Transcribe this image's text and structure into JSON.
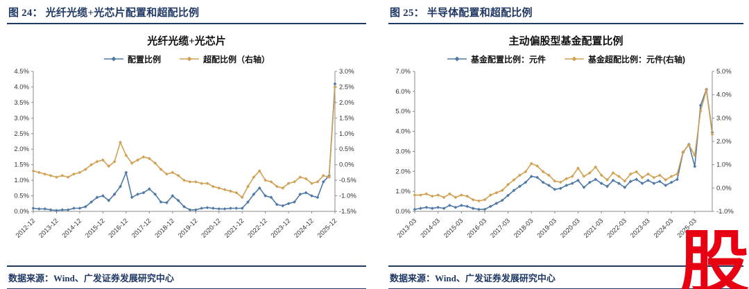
{
  "accent_color": "#1F3864",
  "watermark": "股",
  "figures": [
    {
      "header": "图 24： 光纤光缆+光芯片配置和超配比例",
      "source": "数据来源：Wind、广发证券发展研究中心"
    },
    {
      "header": "图 25： 半导体配置和超配比例",
      "source": "数据来源：Wind、广发证券发展研究中心"
    }
  ],
  "chart_data": [
    {
      "type": "line",
      "title": "光纤光缆+光芯片",
      "legend_position": "top",
      "grid": false,
      "categories": [
        "2012-12",
        "2013-03",
        "2013-06",
        "2013-09",
        "2013-12",
        "2014-03",
        "2014-06",
        "2014-09",
        "2014-12",
        "2015-03",
        "2015-06",
        "2015-09",
        "2015-12",
        "2016-03",
        "2016-06",
        "2016-09",
        "2016-12",
        "2017-03",
        "2017-06",
        "2017-09",
        "2017-12",
        "2018-03",
        "2018-06",
        "2018-09",
        "2018-12",
        "2019-03",
        "2019-06",
        "2019-09",
        "2019-12",
        "2020-03",
        "2020-06",
        "2020-09",
        "2020-12",
        "2021-03",
        "2021-06",
        "2021-09",
        "2021-12",
        "2022-03",
        "2022-06",
        "2022-09",
        "2022-12",
        "2023-03",
        "2023-06",
        "2023-09",
        "2023-12",
        "2024-03",
        "2024-06",
        "2024-09",
        "2024-12",
        "2025-03",
        "2025-06",
        "2025-09",
        "2025-12"
      ],
      "x_tick_labels": [
        "2012-12",
        "2013-12",
        "2014-12",
        "2015-12",
        "2016-12",
        "2017-12",
        "2018-12",
        "2019-12",
        "2020-12",
        "2021-12",
        "2022-12",
        "2023-12",
        "2024-12",
        "2025-12"
      ],
      "axes": {
        "left": {
          "min": 0.0,
          "max": 4.5,
          "ticks": [
            "0.0%",
            "0.5%",
            "1.0%",
            "1.5%",
            "2.0%",
            "2.5%",
            "3.0%",
            "3.5%",
            "4.0%",
            "4.5%"
          ]
        },
        "right": {
          "min": -1.5,
          "max": 3.0,
          "ticks": [
            "-1.5%",
            "-1.0%",
            "-0.5%",
            "0.0%",
            "0.5%",
            "1.0%",
            "1.5%",
            "2.0%",
            "2.5%",
            "3.0%"
          ]
        }
      },
      "series": [
        {
          "name": "配置比例",
          "axis": "left",
          "color": "#4E79A7",
          "marker": "diamond",
          "values": [
            0.1,
            0.08,
            0.08,
            0.05,
            0.03,
            0.05,
            0.05,
            0.1,
            0.1,
            0.15,
            0.3,
            0.45,
            0.5,
            0.35,
            0.55,
            0.8,
            1.25,
            0.45,
            0.55,
            0.6,
            0.72,
            0.55,
            0.3,
            0.28,
            0.5,
            0.35,
            0.15,
            0.05,
            0.05,
            0.1,
            0.12,
            0.1,
            0.08,
            0.08,
            0.1,
            0.1,
            0.1,
            0.3,
            0.55,
            0.75,
            0.5,
            0.45,
            0.22,
            0.18,
            0.25,
            0.3,
            0.55,
            0.6,
            0.5,
            0.45,
            0.95,
            1.15,
            4.1
          ]
        },
        {
          "name": "超配比例（右轴）",
          "axis": "right",
          "color": "#D1A052",
          "marker": "diamond",
          "values": [
            -0.2,
            -0.25,
            -0.3,
            -0.35,
            -0.4,
            -0.35,
            -0.4,
            -0.3,
            -0.25,
            -0.15,
            0.0,
            0.1,
            0.15,
            -0.05,
            0.1,
            0.72,
            0.3,
            0.05,
            0.15,
            0.25,
            0.2,
            0.05,
            -0.15,
            -0.3,
            -0.25,
            -0.35,
            -0.5,
            -0.55,
            -0.55,
            -0.6,
            -0.6,
            -0.7,
            -0.75,
            -0.8,
            -0.85,
            -0.9,
            -1.05,
            -0.7,
            -0.4,
            -0.2,
            -0.5,
            -0.55,
            -0.7,
            -0.75,
            -0.6,
            -0.55,
            -0.4,
            -0.45,
            -0.6,
            -0.55,
            -0.35,
            -0.4,
            2.5
          ]
        }
      ]
    },
    {
      "type": "line",
      "title": "主动偏股型基金配置比例",
      "legend_position": "top",
      "grid": false,
      "categories": [
        "2013-03",
        "2013-06",
        "2013-09",
        "2013-12",
        "2014-03",
        "2014-06",
        "2014-09",
        "2014-12",
        "2015-03",
        "2015-06",
        "2015-09",
        "2015-12",
        "2016-03",
        "2016-06",
        "2016-09",
        "2016-12",
        "2017-03",
        "2017-06",
        "2017-09",
        "2017-12",
        "2018-03",
        "2018-06",
        "2018-09",
        "2018-12",
        "2019-03",
        "2019-06",
        "2019-09",
        "2019-12",
        "2020-03",
        "2020-06",
        "2020-09",
        "2020-12",
        "2021-03",
        "2021-06",
        "2021-09",
        "2021-12",
        "2022-03",
        "2022-06",
        "2022-09",
        "2022-12",
        "2023-03",
        "2023-06",
        "2023-09",
        "2023-12",
        "2024-03",
        "2024-06",
        "2024-09",
        "2024-12",
        "2025-03",
        "2025-06",
        "2025-09",
        "2025-12"
      ],
      "x_tick_labels": [
        "2013-03",
        "2014-03",
        "2015-03",
        "2016-03",
        "2017-03",
        "2018-03",
        "2019-03",
        "2020-03",
        "2021-03",
        "2022-03",
        "2023-03",
        "2024-03",
        "2025-03"
      ],
      "axes": {
        "left": {
          "min": 0.0,
          "max": 7.0,
          "ticks": [
            "0.0%",
            "1.0%",
            "2.0%",
            "3.0%",
            "4.0%",
            "5.0%",
            "6.0%",
            "7.0%"
          ]
        },
        "right": {
          "min": -1.0,
          "max": 5.0,
          "ticks": [
            "-1.0%",
            "0.0%",
            "1.0%",
            "2.0%",
            "3.0%",
            "4.0%",
            "5.0%"
          ]
        }
      },
      "series": [
        {
          "name": "基金配置比例：元件",
          "axis": "left",
          "color": "#4E79A7",
          "marker": "diamond",
          "values": [
            0.1,
            0.15,
            0.2,
            0.15,
            0.2,
            0.15,
            0.3,
            0.2,
            0.3,
            0.25,
            0.15,
            0.1,
            0.1,
            0.25,
            0.4,
            0.55,
            0.8,
            1.05,
            1.25,
            1.45,
            1.75,
            1.7,
            1.45,
            1.3,
            1.1,
            1.15,
            1.3,
            1.4,
            1.55,
            1.2,
            1.45,
            1.6,
            1.4,
            1.25,
            1.55,
            1.4,
            1.2,
            1.5,
            1.6,
            1.4,
            1.55,
            1.4,
            1.5,
            1.3,
            1.45,
            1.6,
            2.95,
            3.35,
            2.25,
            5.3,
            6.1,
            3.95
          ]
        },
        {
          "name": "基金超配比例：元件(右轴)",
          "axis": "right",
          "color": "#D1A052",
          "marker": "diamond",
          "values": [
            -0.3,
            -0.3,
            -0.25,
            -0.35,
            -0.3,
            -0.4,
            -0.25,
            -0.4,
            -0.3,
            -0.35,
            -0.5,
            -0.55,
            -0.5,
            -0.3,
            -0.2,
            -0.1,
            0.15,
            0.35,
            0.55,
            0.7,
            1.05,
            0.95,
            0.7,
            0.55,
            0.3,
            0.25,
            0.4,
            0.5,
            0.85,
            0.5,
            0.65,
            0.9,
            0.55,
            0.35,
            0.65,
            0.5,
            0.3,
            0.6,
            0.7,
            0.45,
            0.6,
            0.45,
            0.55,
            0.35,
            0.5,
            0.6,
            1.55,
            1.85,
            1.4,
            3.3,
            4.2,
            2.3
          ]
        }
      ]
    }
  ]
}
